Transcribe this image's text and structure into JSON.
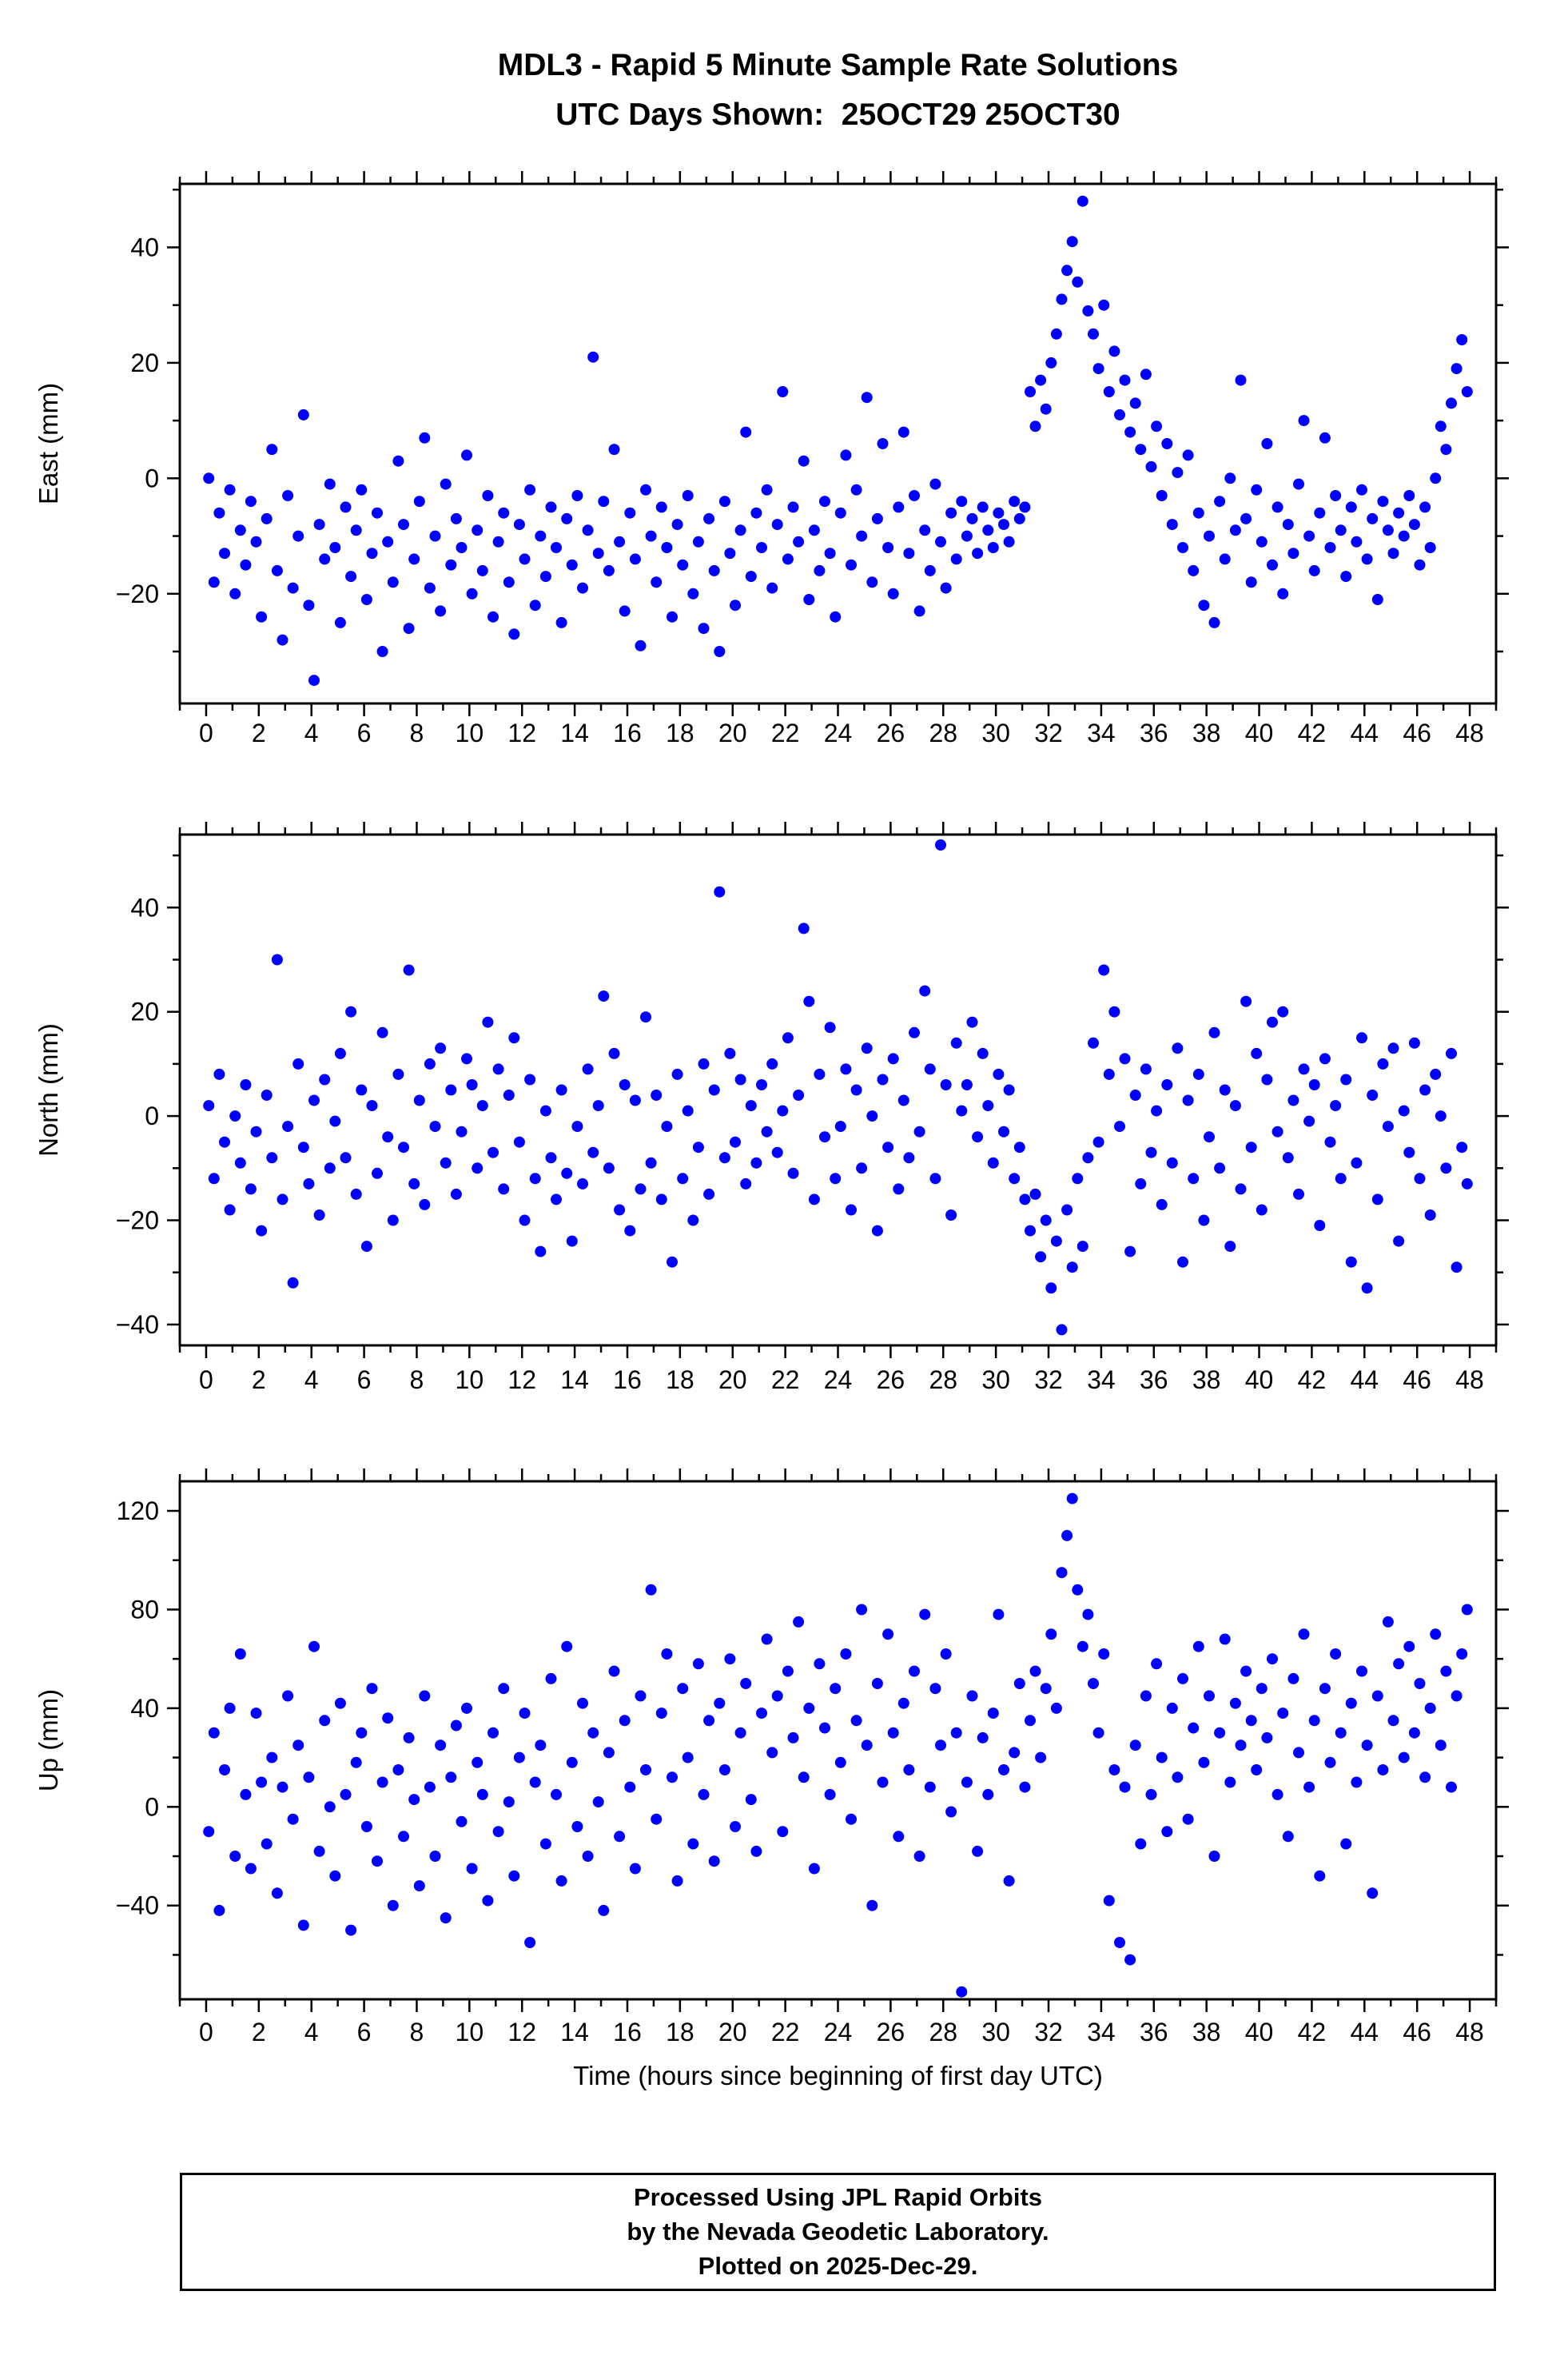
{
  "title": {
    "line1": "MDL3 - Rapid 5 Minute Sample Rate Solutions",
    "line2": "UTC Days Shown:  25OCT29 25OCT30"
  },
  "footer": {
    "line1": "Processed Using JPL Rapid Orbits",
    "line2": "by the Nevada Geodetic Laboratory.",
    "line3": "Plotted on 2025-Dec-29."
  },
  "chart_data": {
    "type": "scatter",
    "marker_color": "#0000FF",
    "xlabel": "Time (hours since beginning of first day UTC)",
    "xlim": [
      -1,
      49
    ],
    "x_ticks": [
      0,
      2,
      4,
      6,
      8,
      10,
      12,
      14,
      16,
      18,
      20,
      22,
      24,
      26,
      28,
      30,
      32,
      34,
      36,
      38,
      40,
      42,
      44,
      46,
      48
    ],
    "x_minor_step": 1,
    "x_start": 0.1,
    "x_step": 0.2,
    "panels": [
      {
        "name": "East",
        "ylabel": "East (mm)",
        "ylim": [
          -39,
          51
        ],
        "y_ticks": [
          -20,
          0,
          20,
          40
        ],
        "y_minor_step": 10,
        "values": [
          0,
          -18,
          -6,
          -13,
          -2,
          -20,
          -9,
          -15,
          -4,
          -11,
          -24,
          -7,
          5,
          -16,
          -28,
          -3,
          -19,
          -10,
          11,
          -22,
          -35,
          -8,
          -14,
          -1,
          -12,
          -25,
          -5,
          -17,
          -9,
          -2,
          -21,
          -13,
          -6,
          -30,
          -11,
          -18,
          3,
          -8,
          -26,
          -14,
          -4,
          7,
          -19,
          -10,
          -23,
          -1,
          -15,
          -7,
          -12,
          4,
          -20,
          -9,
          -16,
          -3,
          -24,
          -11,
          -6,
          -18,
          -27,
          -8,
          -14,
          -2,
          -22,
          -10,
          -17,
          -5,
          -12,
          -25,
          -7,
          -15,
          -3,
          -19,
          -9,
          21,
          -13,
          -4,
          -16,
          5,
          -11,
          -23,
          -6,
          -14,
          -29,
          -2,
          -10,
          -18,
          -5,
          -12,
          -24,
          -8,
          -15,
          -3,
          -20,
          -11,
          -26,
          -7,
          -16,
          -30,
          -4,
          -13,
          -22,
          -9,
          8,
          -17,
          -6,
          -12,
          -2,
          -19,
          -8,
          15,
          -14,
          -5,
          -11,
          3,
          -21,
          -9,
          -16,
          -4,
          -13,
          -24,
          -6,
          4,
          -15,
          -2,
          -10,
          14,
          -18,
          -7,
          6,
          -12,
          -20,
          -5,
          8,
          -13,
          -3,
          -23,
          -9,
          -16,
          -1,
          -11,
          -19,
          -6,
          -14,
          -4,
          -10,
          -7,
          -13,
          -5,
          -9,
          -12,
          -6,
          -8,
          -11,
          -4,
          -7,
          -5,
          15,
          9,
          17,
          12,
          20,
          25,
          31,
          36,
          41,
          34,
          48,
          29,
          25,
          19,
          30,
          15,
          22,
          11,
          17,
          8,
          13,
          5,
          18,
          2,
          9,
          -3,
          6,
          -8,
          1,
          -12,
          4,
          -16,
          -6,
          -22,
          -10,
          -25,
          -4,
          -14,
          0,
          -9,
          17,
          -7,
          -18,
          -2,
          -11,
          6,
          -15,
          -5,
          -20,
          -8,
          -13,
          -1,
          10,
          -10,
          -16,
          -6,
          7,
          -12,
          -3,
          -9,
          -17,
          -5,
          -11,
          -2,
          -14,
          -7,
          -21,
          -4,
          -9,
          -13,
          -6,
          -10,
          -3,
          -8,
          -15,
          -5,
          -12,
          0,
          9,
          5,
          13,
          19,
          24,
          15
        ]
      },
      {
        "name": "North",
        "ylabel": "North (mm)",
        "ylim": [
          -44,
          54
        ],
        "y_ticks": [
          -40,
          -20,
          0,
          20,
          40
        ],
        "y_minor_step": 10,
        "values": [
          2,
          -12,
          8,
          -5,
          -18,
          0,
          -9,
          6,
          -14,
          -3,
          -22,
          4,
          -8,
          30,
          -16,
          -2,
          -32,
          10,
          -6,
          -13,
          3,
          -19,
          7,
          -10,
          -1,
          12,
          -8,
          20,
          -15,
          5,
          -25,
          2,
          -11,
          16,
          -4,
          -20,
          8,
          -6,
          28,
          -13,
          3,
          -17,
          10,
          -2,
          13,
          -9,
          5,
          -15,
          -3,
          11,
          6,
          -10,
          2,
          18,
          -7,
          9,
          -14,
          4,
          15,
          -5,
          -20,
          7,
          -12,
          -26,
          1,
          -8,
          -16,
          5,
          -11,
          -24,
          -2,
          -13,
          9,
          -7,
          2,
          23,
          -10,
          12,
          -18,
          6,
          -22,
          3,
          -14,
          19,
          -9,
          4,
          -16,
          -2,
          -28,
          8,
          -12,
          1,
          -20,
          -6,
          10,
          -15,
          5,
          43,
          -8,
          12,
          -5,
          7,
          -13,
          2,
          -9,
          6,
          -3,
          10,
          -7,
          1,
          15,
          -11,
          4,
          36,
          22,
          -16,
          8,
          -4,
          17,
          -12,
          -2,
          9,
          -18,
          5,
          -10,
          13,
          0,
          -22,
          7,
          -6,
          11,
          -14,
          3,
          -8,
          16,
          -3,
          24,
          9,
          -12,
          52,
          6,
          -19,
          14,
          1,
          6,
          18,
          -4,
          12,
          2,
          -9,
          8,
          -3,
          5,
          -12,
          -6,
          -16,
          -22,
          -15,
          -27,
          -20,
          -33,
          -24,
          -41,
          -18,
          -29,
          -12,
          -25,
          -8,
          14,
          -5,
          28,
          8,
          20,
          -2,
          11,
          -26,
          4,
          -13,
          9,
          -7,
          1,
          -17,
          6,
          -9,
          13,
          -28,
          3,
          -12,
          8,
          -20,
          -4,
          16,
          -10,
          5,
          -25,
          2,
          -14,
          22,
          -6,
          12,
          -18,
          7,
          18,
          -3,
          20,
          -8,
          3,
          -15,
          9,
          -1,
          6,
          -21,
          11,
          -5,
          2,
          -12,
          7,
          -28,
          -9,
          15,
          -33,
          4,
          -16,
          10,
          -2,
          13,
          -24,
          1,
          -7,
          14,
          -12,
          5,
          -19,
          8,
          0,
          -10,
          12,
          -29,
          -6,
          -13
        ]
      },
      {
        "name": "Up",
        "ylabel": "Up (mm)",
        "ylim": [
          -78,
          132
        ],
        "y_ticks": [
          -40,
          0,
          40,
          80,
          120
        ],
        "y_minor_step": 20,
        "values": [
          -10,
          30,
          -42,
          15,
          40,
          -20,
          62,
          5,
          -25,
          38,
          10,
          -15,
          20,
          -35,
          8,
          45,
          -5,
          25,
          -48,
          12,
          65,
          -18,
          35,
          0,
          -28,
          42,
          5,
          -50,
          18,
          30,
          -8,
          48,
          -22,
          10,
          36,
          -40,
          15,
          -12,
          28,
          3,
          -32,
          45,
          8,
          -20,
          25,
          -45,
          12,
          33,
          -6,
          40,
          -25,
          18,
          5,
          -38,
          30,
          -10,
          48,
          2,
          -28,
          20,
          38,
          -55,
          10,
          25,
          -15,
          52,
          5,
          -30,
          65,
          18,
          -8,
          42,
          -20,
          30,
          2,
          -42,
          22,
          55,
          -12,
          35,
          8,
          -25,
          45,
          15,
          88,
          -5,
          38,
          62,
          12,
          -30,
          48,
          20,
          -15,
          58,
          5,
          35,
          -22,
          42,
          15,
          60,
          -8,
          30,
          50,
          3,
          -18,
          38,
          68,
          22,
          45,
          -10,
          55,
          28,
          75,
          12,
          40,
          -25,
          58,
          32,
          5,
          48,
          18,
          62,
          -5,
          35,
          80,
          25,
          -40,
          50,
          10,
          70,
          30,
          -12,
          42,
          15,
          55,
          -20,
          78,
          8,
          48,
          25,
          62,
          -2,
          30,
          -75,
          10,
          45,
          -18,
          28,
          5,
          38,
          78,
          15,
          -30,
          22,
          50,
          8,
          35,
          55,
          20,
          48,
          70,
          40,
          95,
          110,
          125,
          88,
          65,
          78,
          50,
          30,
          62,
          -38,
          15,
          -55,
          8,
          -62,
          25,
          -15,
          45,
          5,
          58,
          20,
          -10,
          40,
          12,
          52,
          -5,
          32,
          65,
          18,
          45,
          -20,
          30,
          68,
          10,
          42,
          25,
          55,
          35,
          15,
          48,
          28,
          60,
          5,
          38,
          -12,
          52,
          22,
          70,
          8,
          35,
          -28,
          48,
          18,
          62,
          30,
          -15,
          42,
          10,
          55,
          25,
          -35,
          45,
          15,
          75,
          35,
          58,
          20,
          65,
          30,
          50,
          12,
          40,
          70,
          25,
          55,
          8,
          45,
          62,
          80
        ]
      }
    ]
  }
}
